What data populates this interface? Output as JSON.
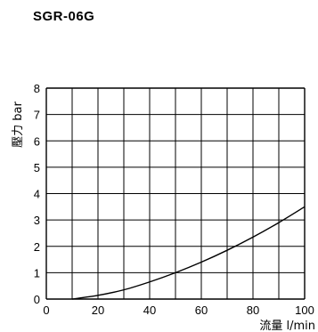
{
  "chart_data": {
    "type": "line",
    "title": "SGR-06G",
    "xlabel": "流量 l/min",
    "ylabel": "壓力 bar",
    "xlim": [
      0,
      100
    ],
    "ylim": [
      0,
      8
    ],
    "x_ticks": [
      0,
      20,
      40,
      60,
      80,
      100
    ],
    "y_ticks": [
      0,
      1,
      2,
      3,
      4,
      5,
      6,
      7,
      8
    ],
    "grid": true,
    "series": [
      {
        "x": [
          10,
          20,
          30,
          40,
          50,
          60,
          70,
          80,
          90,
          100
        ],
        "y": [
          0.0,
          0.14,
          0.35,
          0.65,
          1.0,
          1.4,
          1.85,
          2.35,
          2.9,
          3.5
        ]
      }
    ]
  },
  "colors": {
    "line": "#000000",
    "grid": "#000000",
    "background": "#ffffff"
  }
}
